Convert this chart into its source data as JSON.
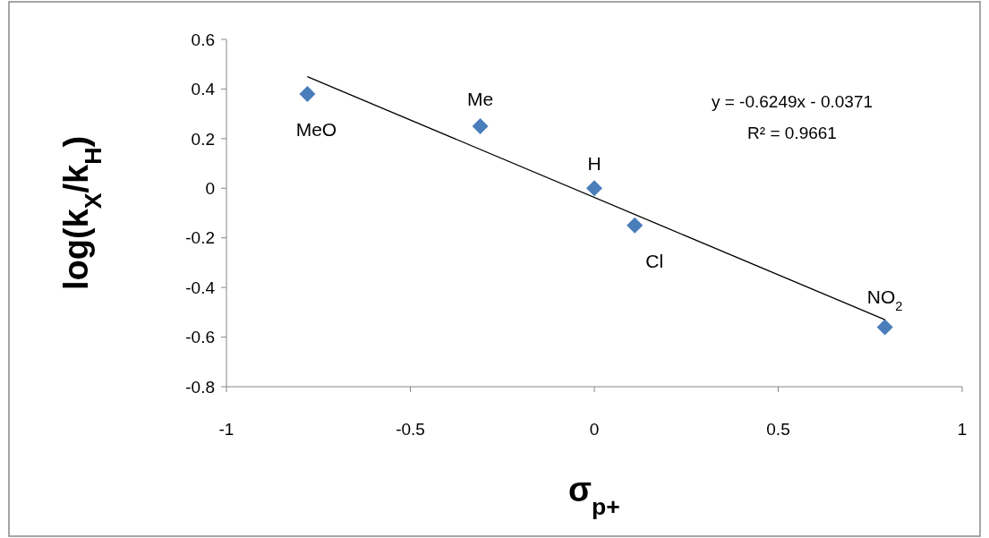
{
  "chart_data": {
    "type": "scatter",
    "xlabel": "σ$_{p+}$",
    "ylabel": "log(k$_{X}$/k$_{H}$)",
    "xlim": [
      -1,
      1
    ],
    "xticks": [
      -1,
      -0.5,
      0,
      0.5,
      1
    ],
    "ylim": [
      -0.8,
      0.6
    ],
    "yticks": [
      -0.8,
      -0.6,
      -0.4,
      -0.2,
      0,
      0.2,
      0.4,
      0.6
    ],
    "series": [
      {
        "color": "#4a7ebb",
        "marker": "diamond",
        "x": [
          -0.78,
          -0.31,
          0,
          0.11,
          0.79
        ],
        "values": [
          0.38,
          0.25,
          0,
          -0.15,
          -0.56
        ]
      },
      {
        "type": "line",
        "color": "#000000",
        "x": [
          -0.78,
          0.79
        ],
        "values": [
          0.45,
          -0.53
        ]
      }
    ],
    "annotations": [
      {
        "text": "MeO",
        "x": -0.78,
        "y": 0.38
      },
      {
        "text": "Me",
        "x": -0.31,
        "y": 0.25
      },
      {
        "text": "H",
        "x": 0,
        "y": 0
      },
      {
        "text": "Cl",
        "x": 0.11,
        "y": -0.15
      },
      {
        "text": "NO$_{2}$",
        "x": 0.79,
        "y": -0.56
      },
      "y = -0.6249x - 0.0371",
      "R² = 0.9661"
    ]
  }
}
